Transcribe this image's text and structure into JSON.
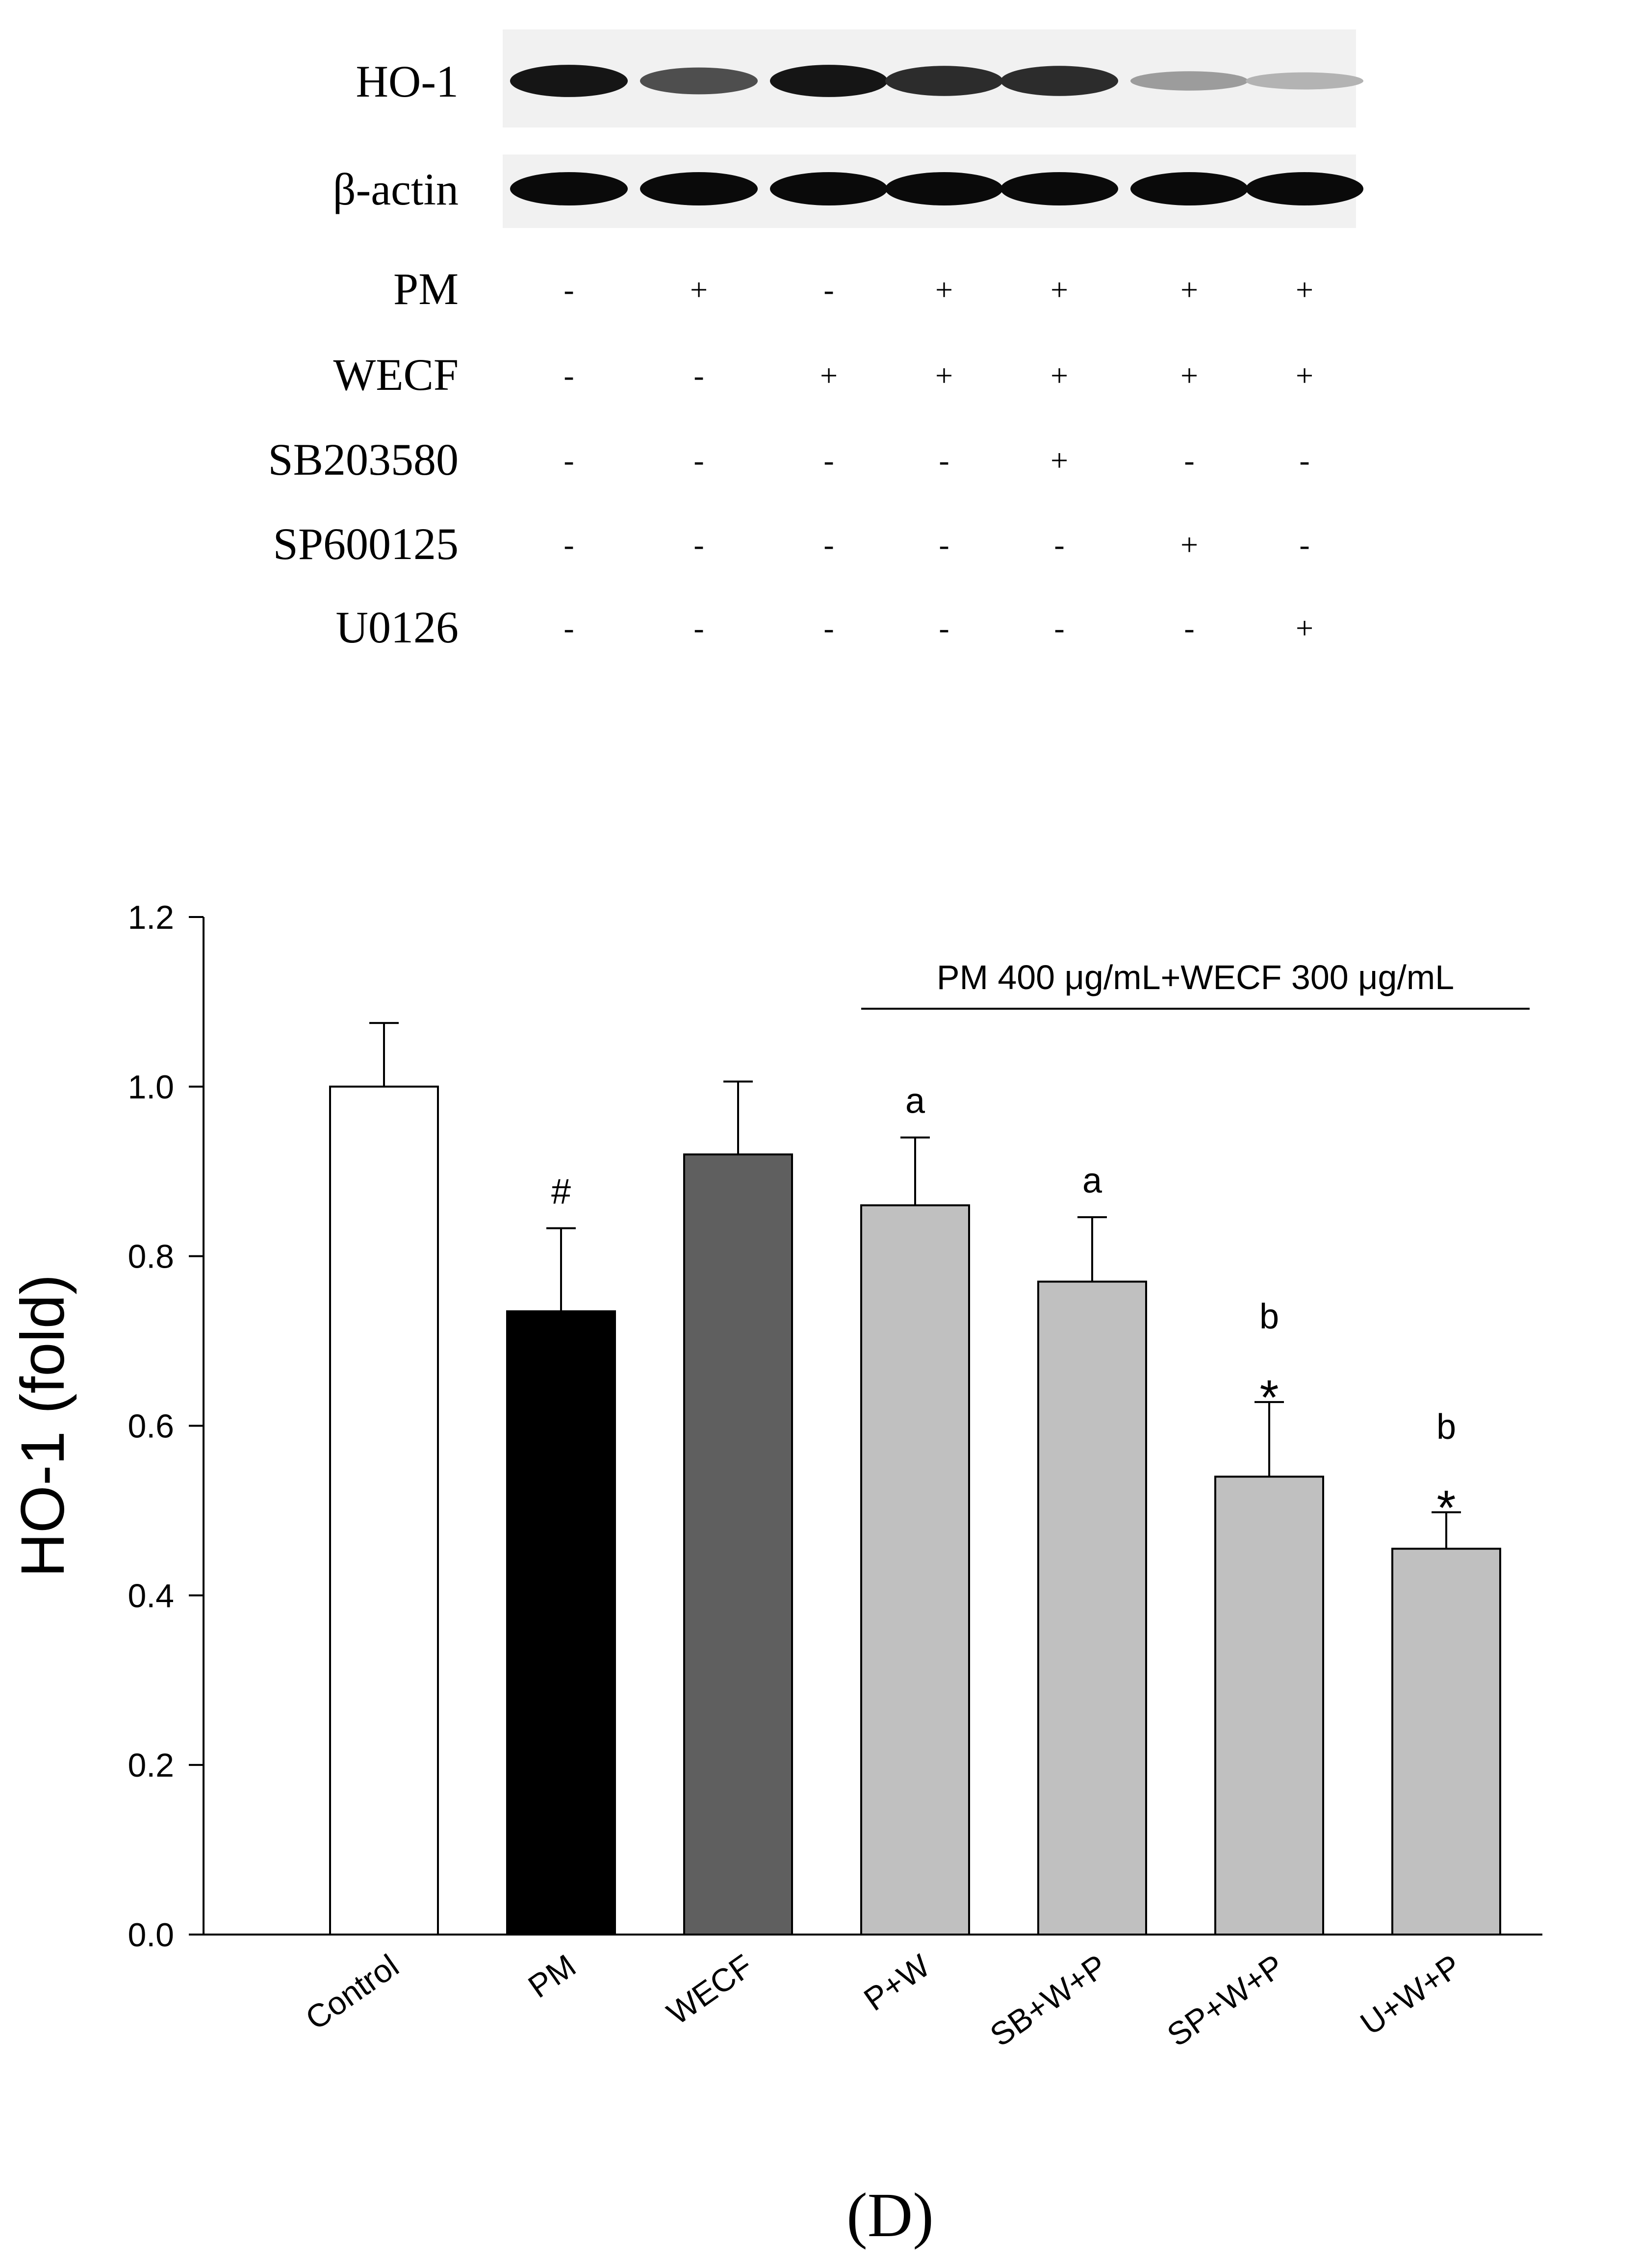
{
  "blot": {
    "rows": [
      {
        "label": "HO-1",
        "band_intensity": [
          0.95,
          0.7,
          0.95,
          0.85,
          0.85,
          0.35,
          0.25
        ]
      },
      {
        "label": "β-actin",
        "band_intensity": [
          1.0,
          1.0,
          1.0,
          1.0,
          1.0,
          1.0,
          1.0
        ]
      }
    ]
  },
  "treatments": [
    {
      "label": "PM",
      "signs": [
        "-",
        "+",
        "-",
        "+",
        "+",
        "+",
        "+"
      ]
    },
    {
      "label": "WECF",
      "signs": [
        "-",
        "-",
        "+",
        "+",
        "+",
        "+",
        "+"
      ]
    },
    {
      "label": "SB203580",
      "signs": [
        "-",
        "-",
        "-",
        "-",
        "+",
        "-",
        "-"
      ]
    },
    {
      "label": "SP600125",
      "signs": [
        "-",
        "-",
        "-",
        "-",
        "-",
        "+",
        "-"
      ]
    },
    {
      "label": "U0126",
      "signs": [
        "-",
        "-",
        "-",
        "-",
        "-",
        "-",
        "+"
      ]
    }
  ],
  "chart_data": {
    "type": "bar",
    "title": "",
    "xlabel": "",
    "ylabel": "HO-1 (fold)",
    "ylim": [
      0,
      1.2
    ],
    "yticks": [
      "0.0",
      "0.2",
      "0.4",
      "0.6",
      "0.8",
      "1.0",
      "1.2"
    ],
    "categories": [
      "Control",
      "PM",
      "WECF",
      "P+W",
      "SB+W+P",
      "SP+W+P",
      "U+W+P"
    ],
    "values": [
      1.0,
      0.735,
      0.92,
      0.86,
      0.77,
      0.54,
      0.455
    ],
    "errors": [
      0.075,
      0.098,
      0.086,
      0.08,
      0.076,
      0.088,
      0.043
    ],
    "annotations": [
      "",
      "#",
      "",
      "a",
      "a",
      "b *",
      "b *"
    ],
    "bar_colors": [
      "#ffffff",
      "#000000",
      "#5f5f5f",
      "#c0c0c0",
      "#c0c0c0",
      "#c0c0c0",
      "#c0c0c0"
    ],
    "bracket_label": "PM 400 μg/mL+WECF 300 μg/mL",
    "bracket_span": [
      "P+W",
      "U+W+P"
    ]
  },
  "panel_label": "(D)"
}
